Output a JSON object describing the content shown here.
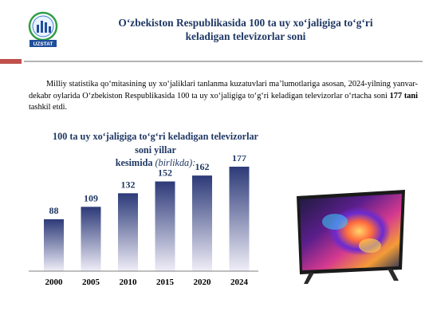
{
  "logo": {
    "text": "UZSTAT",
    "icon": "uzstat-logo-icon"
  },
  "header": {
    "title_line1": "O‘zbekiston Respublikasida 100 ta uy xo‘jaligiga to‘g‘ri",
    "title_line2": "keladigan televizorlar soni"
  },
  "paragraph": {
    "text_before": "Milliy statistika qo‘mitasining uy xo‘jaliklari tanlanma kuzatuvlari ma’lumotlariga asosan, 2024-yilning yanvar-dekabr oylarida O‘zbekiston Respublikasida 100 ta uy xo‘jaligiga to‘g‘ri keladigan televizorlar o‘rtacha soni ",
    "bold_value": "177 tani",
    "text_after": " tashkil etdi."
  },
  "chart_data": {
    "type": "bar",
    "title_line1": "100 ta uy xo‘jaligiga to‘g‘ri keladigan televizorlar soni yillar",
    "title_line2": "kesimida",
    "unit": "(birlikda):",
    "categories": [
      "2000",
      "2005",
      "2010",
      "2015",
      "2020",
      "2024"
    ],
    "values": [
      88,
      109,
      132,
      152,
      162,
      177
    ],
    "ylim": [
      0,
      200
    ],
    "grid": false,
    "colors": {
      "bar_top": "#2c3a78",
      "bar_bottom": "#f0eef8",
      "label": "#1f3864"
    }
  },
  "image": {
    "icon": "television-icon"
  }
}
